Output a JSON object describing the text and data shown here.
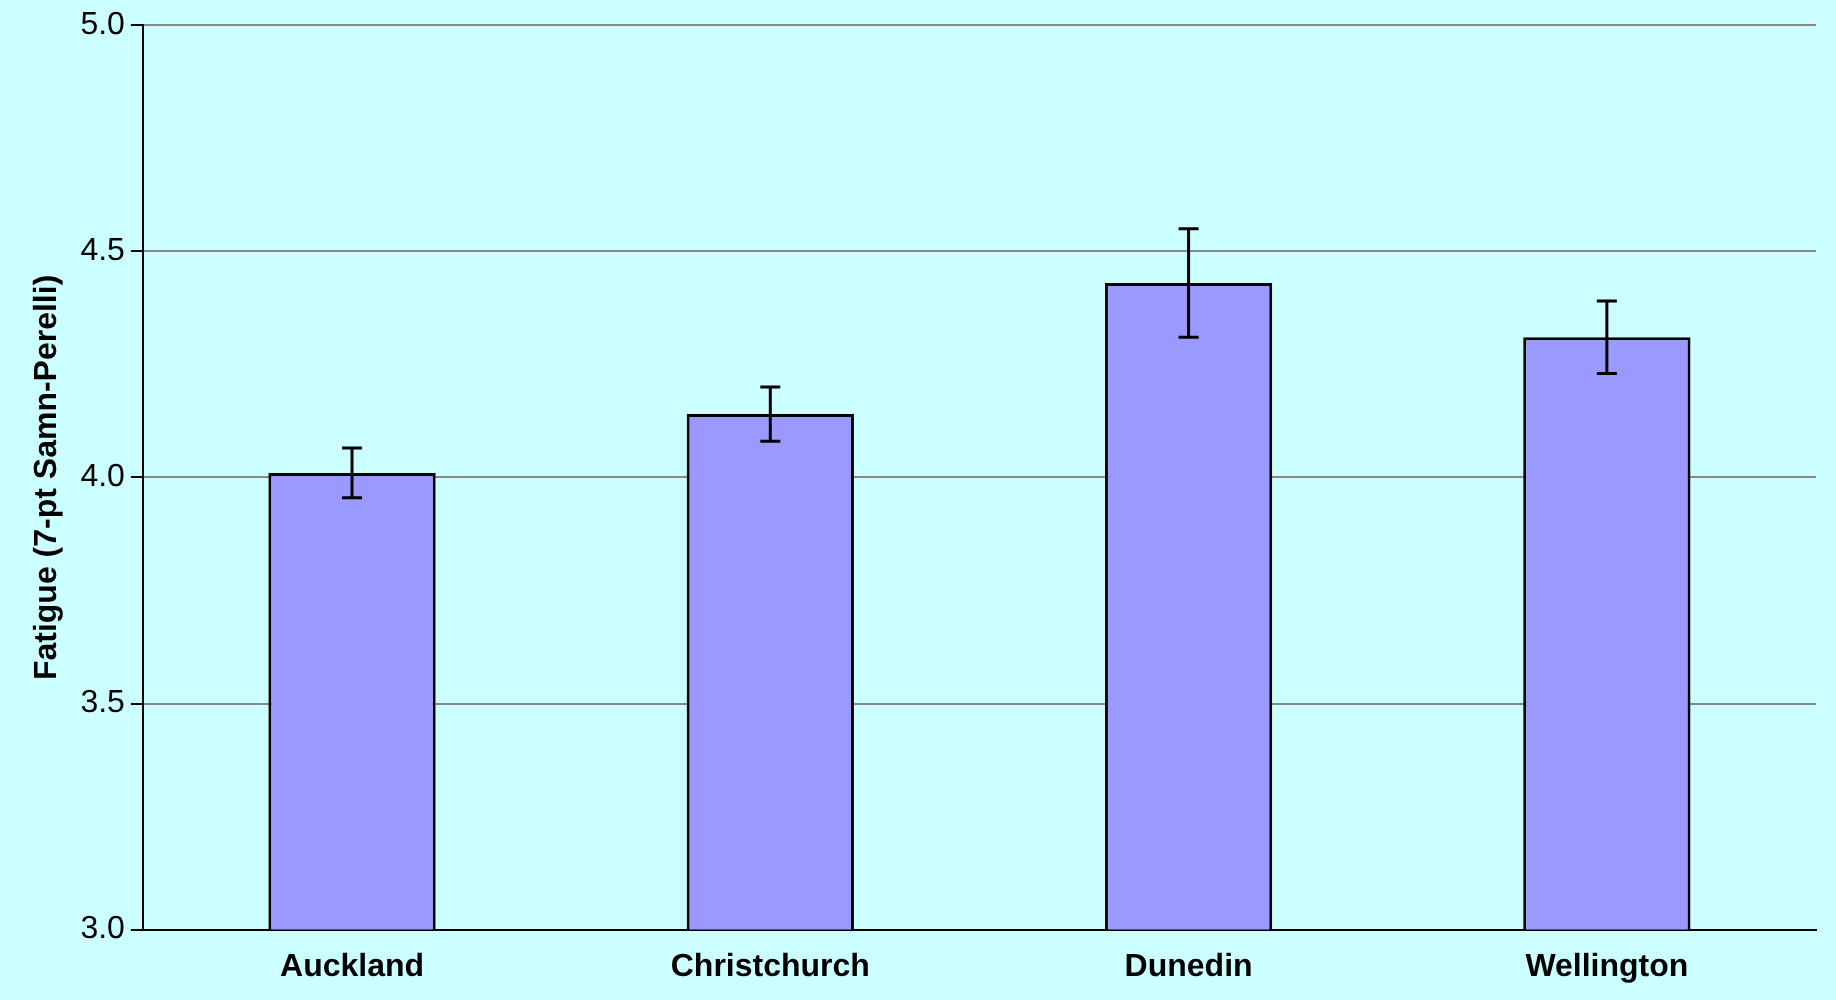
{
  "chart_data": {
    "type": "bar",
    "ylabel": "Fatigue (7-pt Samn-Perelli)",
    "categories": [
      "Auckland",
      "Christchurch",
      "Dunedin",
      "Wellington"
    ],
    "values": [
      4.01,
      4.14,
      4.43,
      4.31
    ],
    "errors": [
      0.055,
      0.06,
      0.12,
      0.08
    ],
    "color": "#9999ff",
    "ylim": [
      3.0,
      5.0
    ],
    "yticks": [
      {
        "value": 3.0,
        "label": "3.0"
      },
      {
        "value": 3.5,
        "label": "3.5"
      },
      {
        "value": 4.0,
        "label": "4.0"
      },
      {
        "value": 4.5,
        "label": "4.5"
      },
      {
        "value": 5.0,
        "label": "5.0"
      }
    ],
    "grid": "y"
  }
}
